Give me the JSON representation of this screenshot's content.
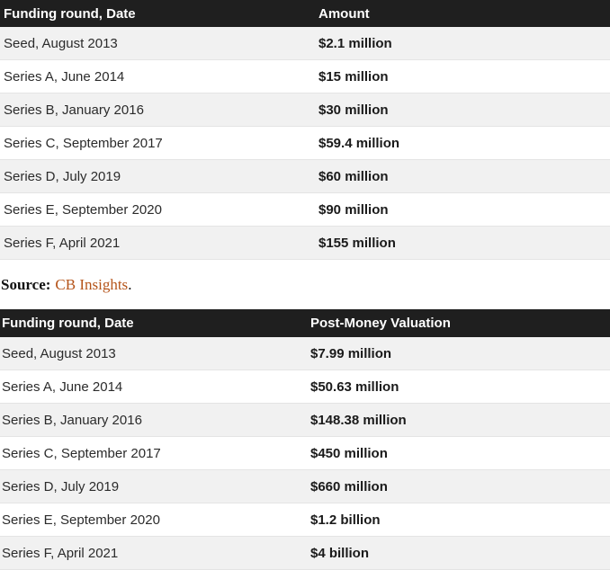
{
  "funding_table": {
    "headers": [
      "Funding round, Date",
      "Amount"
    ],
    "rows": [
      [
        "Seed, August 2013",
        "$2.1 million"
      ],
      [
        "Series A, June 2014",
        "$15 million"
      ],
      [
        "Series B, January 2016",
        "$30 million"
      ],
      [
        "Series C, September 2017",
        "$59.4 million"
      ],
      [
        "Series D, July 2019",
        "$60 million"
      ],
      [
        "Series E, September 2020",
        "$90 million"
      ],
      [
        "Series F, April 2021",
        "$155 million"
      ]
    ]
  },
  "source": {
    "label": "Source:",
    "link_text": "CB Insights",
    "trailing": "."
  },
  "valuation_table": {
    "headers": [
      "Funding round, Date",
      "Post-Money Valuation"
    ],
    "rows": [
      [
        "Seed, August 2013",
        "$7.99 million"
      ],
      [
        "Series A, June 2014",
        "$50.63 million"
      ],
      [
        "Series B, January 2016",
        "$148.38 million"
      ],
      [
        "Series C, September 2017",
        "$450 million"
      ],
      [
        "Series D, July 2019",
        "$660 million"
      ],
      [
        "Series E, September 2020",
        "$1.2 billion"
      ],
      [
        "Series F, April 2021",
        "$4 billion"
      ]
    ]
  },
  "colors": {
    "header_bg": "#1f1f1f",
    "header_text": "#ffffff",
    "stripe_row": "#f1f1f1",
    "link": "#b5541a"
  }
}
